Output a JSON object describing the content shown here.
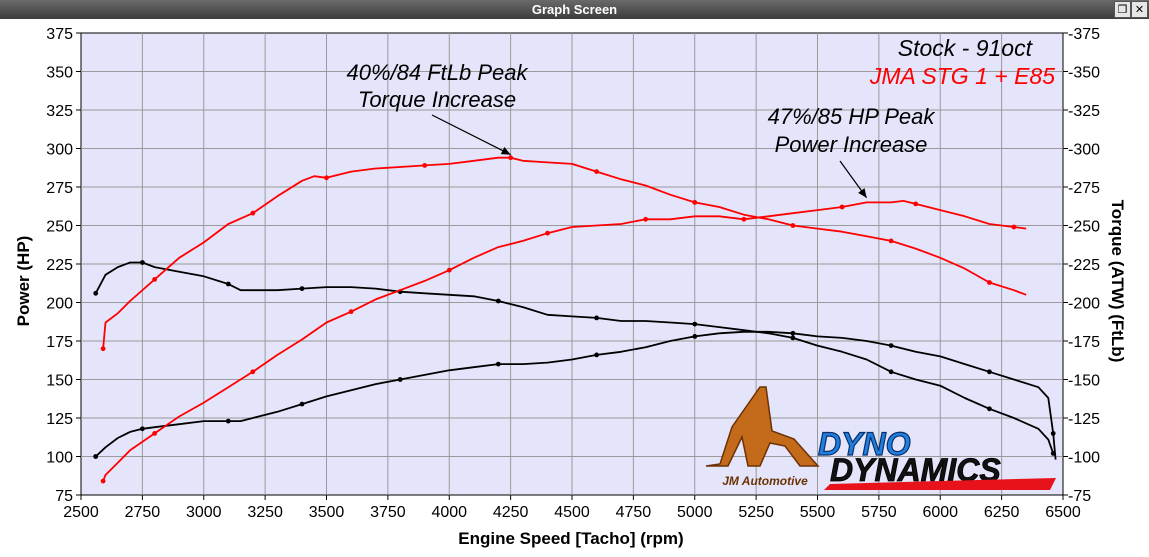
{
  "window": {
    "title": "Graph Screen",
    "restore_glyph": "❐",
    "close_glyph": "✕"
  },
  "chart_data": {
    "type": "line",
    "xlabel": "Engine Speed [Tacho] (rpm)",
    "ylabel_left": "Power (HP)",
    "ylabel_right": "Torque (ATW) (FtLb)",
    "xlim": [
      2500,
      6500
    ],
    "ylim": [
      75,
      375
    ],
    "xticks": [
      "2500",
      "2750",
      "3000",
      "3250",
      "3500",
      "3750",
      "4000",
      "4250",
      "4500",
      "4750",
      "5000",
      "5250",
      "5500",
      "5750",
      "6000",
      "6250",
      "6500"
    ],
    "yticks_left": [
      "375",
      "350",
      "325",
      "300",
      "275",
      "250",
      "225",
      "200",
      "175",
      "150",
      "125",
      "100",
      "75"
    ],
    "yticks_right": [
      "-375",
      "-350",
      "-325",
      "-300",
      "-275",
      "-250",
      "-225",
      "-200",
      "-175",
      "-150",
      "-125",
      "-100",
      "-75"
    ],
    "grid": true,
    "legend": [
      {
        "label": "Stock - 91oct",
        "color": "#000000"
      },
      {
        "label": "JMA STG 1 + E85",
        "color": "#ff0000"
      }
    ],
    "annotations": [
      {
        "line1": "40%/84 FtLb Peak",
        "line2": "Torque Increase",
        "arrow_to": [
          4250,
          296
        ]
      },
      {
        "line1": "47%/85 HP Peak",
        "line2": "Power Increase",
        "arrow_to": [
          5700,
          268
        ]
      }
    ],
    "series": [
      {
        "name": "Stock - 91oct",
        "measure": "power",
        "color": "#000000",
        "points": [
          [
            2560,
            100
          ],
          [
            2600,
            106
          ],
          [
            2650,
            112
          ],
          [
            2700,
            116
          ],
          [
            2750,
            118
          ],
          [
            2800,
            119
          ],
          [
            2900,
            121
          ],
          [
            3000,
            123
          ],
          [
            3100,
            123
          ],
          [
            3150,
            123
          ],
          [
            3200,
            125
          ],
          [
            3300,
            129
          ],
          [
            3400,
            134
          ],
          [
            3500,
            139
          ],
          [
            3600,
            143
          ],
          [
            3700,
            147
          ],
          [
            3800,
            150
          ],
          [
            3900,
            153
          ],
          [
            4000,
            156
          ],
          [
            4100,
            158
          ],
          [
            4200,
            160
          ],
          [
            4300,
            160
          ],
          [
            4400,
            161
          ],
          [
            4500,
            163
          ],
          [
            4600,
            166
          ],
          [
            4700,
            168
          ],
          [
            4800,
            171
          ],
          [
            4900,
            175
          ],
          [
            5000,
            178
          ],
          [
            5100,
            180
          ],
          [
            5200,
            181
          ],
          [
            5300,
            181
          ],
          [
            5400,
            180
          ],
          [
            5500,
            178
          ],
          [
            5600,
            177
          ],
          [
            5700,
            175
          ],
          [
            5800,
            172
          ],
          [
            5900,
            168
          ],
          [
            6000,
            165
          ],
          [
            6100,
            160
          ],
          [
            6200,
            155
          ],
          [
            6300,
            150
          ],
          [
            6400,
            145
          ],
          [
            6440,
            138
          ],
          [
            6460,
            115
          ],
          [
            6470,
            98
          ]
        ]
      },
      {
        "name": "Stock - 91oct",
        "measure": "torque",
        "color": "#000000",
        "points": [
          [
            2560,
            206
          ],
          [
            2600,
            218
          ],
          [
            2650,
            223
          ],
          [
            2700,
            226
          ],
          [
            2750,
            226
          ],
          [
            2800,
            223
          ],
          [
            2900,
            220
          ],
          [
            3000,
            217
          ],
          [
            3100,
            212
          ],
          [
            3150,
            208
          ],
          [
            3200,
            208
          ],
          [
            3300,
            208
          ],
          [
            3400,
            209
          ],
          [
            3500,
            210
          ],
          [
            3600,
            210
          ],
          [
            3700,
            209
          ],
          [
            3800,
            207
          ],
          [
            3900,
            206
          ],
          [
            4000,
            205
          ],
          [
            4100,
            204
          ],
          [
            4200,
            201
          ],
          [
            4300,
            197
          ],
          [
            4400,
            192
          ],
          [
            4500,
            191
          ],
          [
            4600,
            190
          ],
          [
            4700,
            188
          ],
          [
            4800,
            188
          ],
          [
            4900,
            187
          ],
          [
            5000,
            186
          ],
          [
            5100,
            184
          ],
          [
            5200,
            182
          ],
          [
            5300,
            180
          ],
          [
            5400,
            177
          ],
          [
            5500,
            172
          ],
          [
            5600,
            168
          ],
          [
            5700,
            163
          ],
          [
            5800,
            155
          ],
          [
            5900,
            150
          ],
          [
            6000,
            146
          ],
          [
            6100,
            138
          ],
          [
            6200,
            131
          ],
          [
            6300,
            125
          ],
          [
            6400,
            118
          ],
          [
            6440,
            111
          ],
          [
            6460,
            102
          ]
        ]
      },
      {
        "name": "JMA STG 1 + E85",
        "measure": "power",
        "color": "#ff0000",
        "points": [
          [
            2590,
            84
          ],
          [
            2600,
            88
          ],
          [
            2650,
            96
          ],
          [
            2700,
            104
          ],
          [
            2800,
            115
          ],
          [
            2900,
            126
          ],
          [
            3000,
            135
          ],
          [
            3100,
            145
          ],
          [
            3200,
            155
          ],
          [
            3300,
            166
          ],
          [
            3400,
            176
          ],
          [
            3500,
            187
          ],
          [
            3600,
            194
          ],
          [
            3700,
            202
          ],
          [
            3800,
            208
          ],
          [
            3900,
            214
          ],
          [
            4000,
            221
          ],
          [
            4100,
            229
          ],
          [
            4200,
            236
          ],
          [
            4300,
            240
          ],
          [
            4400,
            245
          ],
          [
            4500,
            249
          ],
          [
            4600,
            250
          ],
          [
            4700,
            251
          ],
          [
            4800,
            254
          ],
          [
            4900,
            254
          ],
          [
            5000,
            256
          ],
          [
            5100,
            256
          ],
          [
            5200,
            254
          ],
          [
            5300,
            256
          ],
          [
            5400,
            258
          ],
          [
            5500,
            260
          ],
          [
            5600,
            262
          ],
          [
            5700,
            265
          ],
          [
            5800,
            265
          ],
          [
            5850,
            266
          ],
          [
            5900,
            264
          ],
          [
            6000,
            260
          ],
          [
            6100,
            256
          ],
          [
            6200,
            251
          ],
          [
            6300,
            249
          ],
          [
            6350,
            248
          ]
        ]
      },
      {
        "name": "JMA STG 1 + E85",
        "measure": "torque",
        "color": "#ff0000",
        "points": [
          [
            2590,
            170
          ],
          [
            2600,
            187
          ],
          [
            2650,
            193
          ],
          [
            2700,
            201
          ],
          [
            2800,
            215
          ],
          [
            2900,
            229
          ],
          [
            3000,
            239
          ],
          [
            3100,
            251
          ],
          [
            3200,
            258
          ],
          [
            3300,
            269
          ],
          [
            3400,
            279
          ],
          [
            3450,
            282
          ],
          [
            3500,
            281
          ],
          [
            3600,
            285
          ],
          [
            3700,
            287
          ],
          [
            3800,
            288
          ],
          [
            3900,
            289
          ],
          [
            4000,
            290
          ],
          [
            4100,
            292
          ],
          [
            4200,
            294
          ],
          [
            4250,
            294
          ],
          [
            4300,
            292
          ],
          [
            4400,
            291
          ],
          [
            4500,
            290
          ],
          [
            4600,
            285
          ],
          [
            4700,
            280
          ],
          [
            4800,
            276
          ],
          [
            4900,
            270
          ],
          [
            5000,
            265
          ],
          [
            5100,
            262
          ],
          [
            5200,
            257
          ],
          [
            5300,
            254
          ],
          [
            5400,
            250
          ],
          [
            5500,
            248
          ],
          [
            5600,
            246
          ],
          [
            5700,
            243
          ],
          [
            5800,
            240
          ],
          [
            5900,
            235
          ],
          [
            6000,
            229
          ],
          [
            6100,
            222
          ],
          [
            6200,
            213
          ],
          [
            6300,
            208
          ],
          [
            6350,
            205
          ]
        ]
      }
    ]
  },
  "branding": {
    "workshop_logo_text": "JM Automotive",
    "dyno_logo_text_top": "DYNO",
    "dyno_logo_text_bottom": "DYNAMICS"
  }
}
